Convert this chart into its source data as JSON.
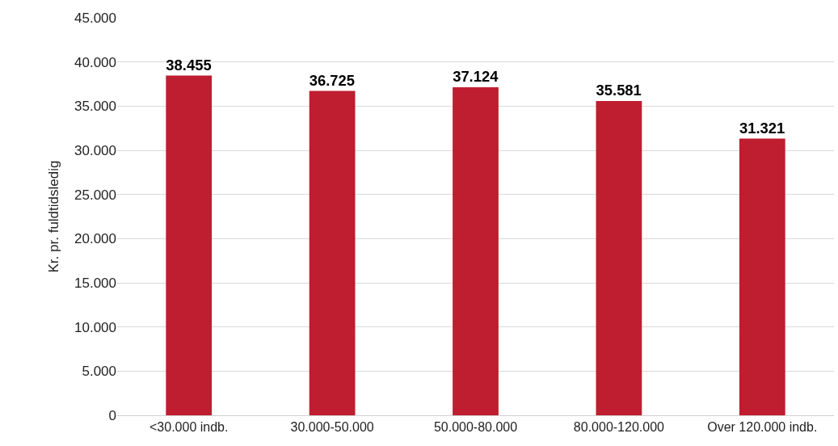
{
  "chart_data": {
    "type": "bar",
    "ylabel": "Kr. pr. fuldtidsledig",
    "categories": [
      "<30.000 indb.",
      "30.000-50.000",
      "50.000-80.000",
      "80.000-120.000",
      "Over 120.000 indb."
    ],
    "values": [
      38455,
      36725,
      37124,
      35581,
      31321
    ],
    "value_labels": [
      "38.455",
      "36.725",
      "37.124",
      "35.581",
      "31.321"
    ],
    "color": "#be1e2f",
    "ylim": [
      0,
      45000
    ],
    "yticks": [
      0,
      {
        "value": 5000,
        "label": "5.000"
      },
      {
        "value": 10000,
        "label": "10.000"
      },
      {
        "value": 15000,
        "label": "15.000"
      },
      {
        "value": 20000,
        "label": "20.000"
      },
      {
        "value": 25000,
        "label": "25.000"
      },
      {
        "value": 30000,
        "label": "30.000"
      },
      {
        "value": 35000,
        "label": "35.000"
      },
      {
        "value": 40000,
        "label": "40.000"
      },
      {
        "value": 45000,
        "label": "45.000"
      }
    ],
    "grid": "y"
  }
}
